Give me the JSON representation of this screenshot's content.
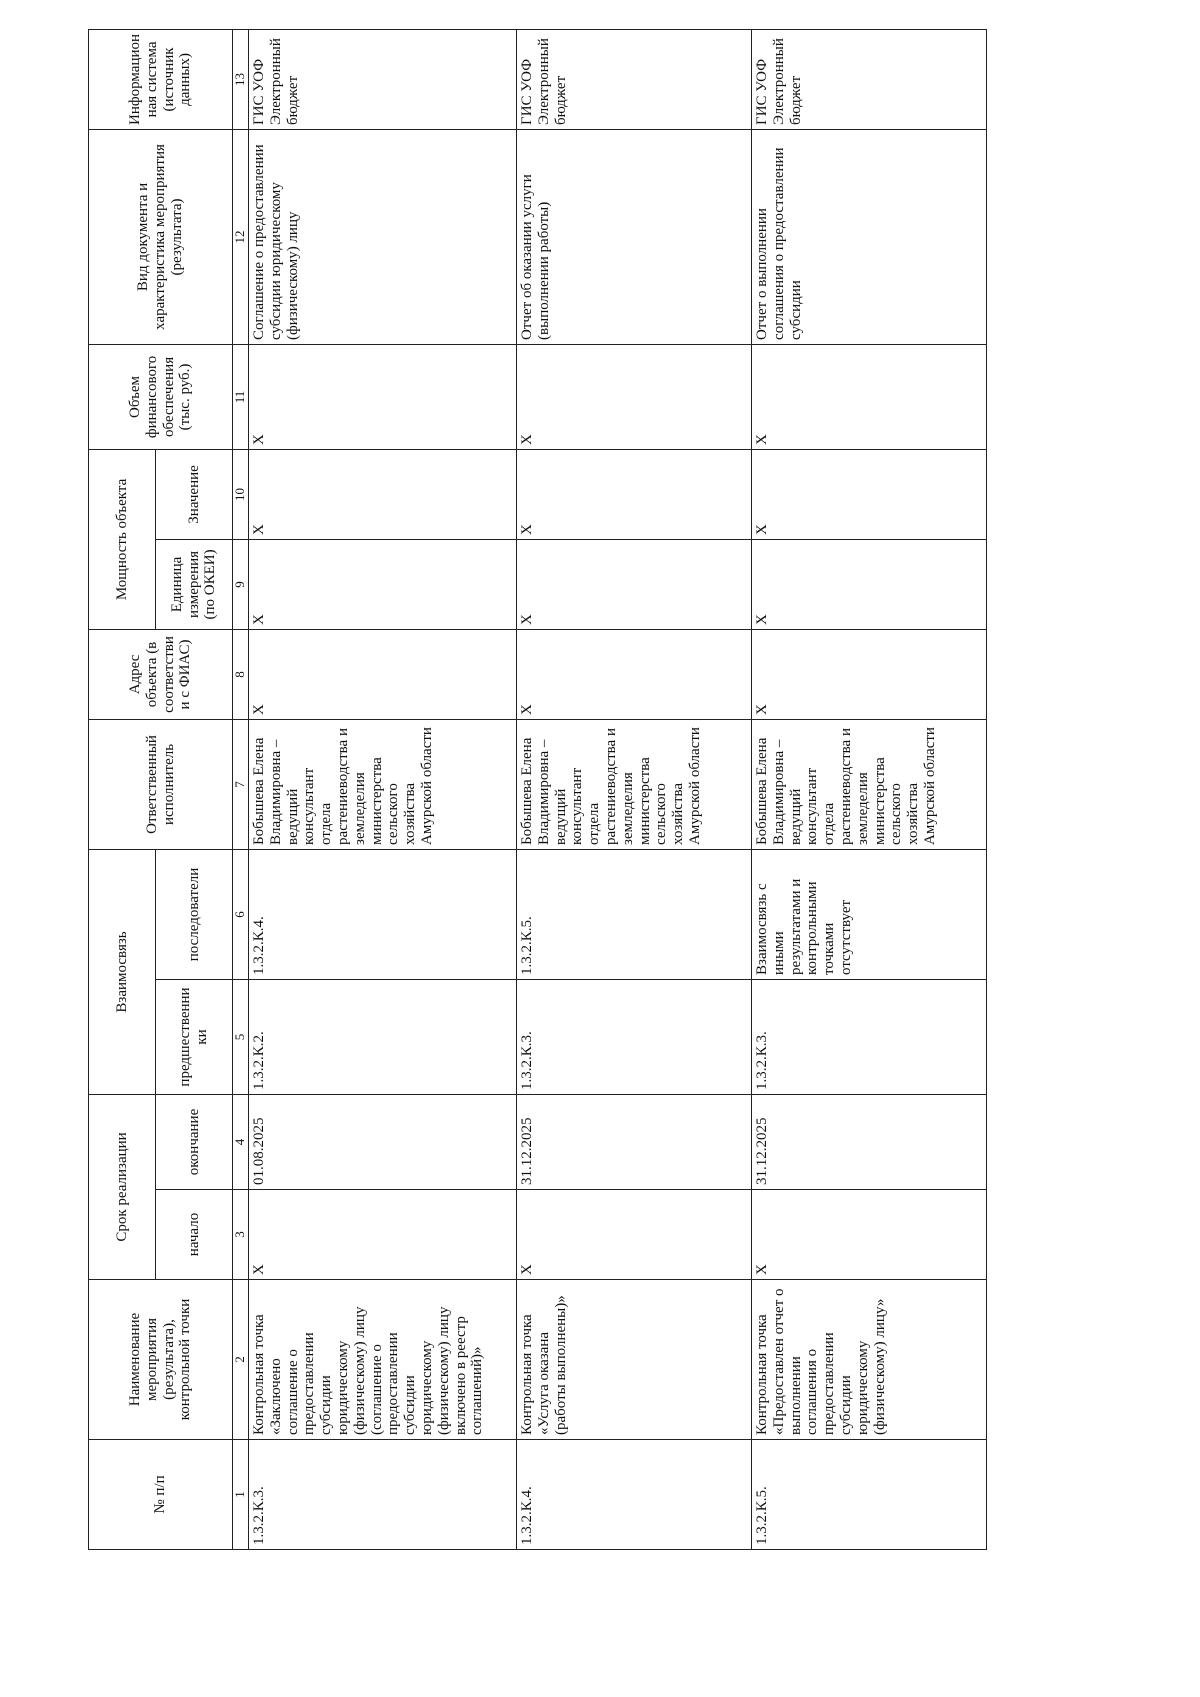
{
  "table": {
    "header_top": [
      {
        "text": "№ п/п",
        "rowspan": 2,
        "colspan": 1
      },
      {
        "text": "Наименование мероприятия (результата), контрольной точки",
        "rowspan": 2,
        "colspan": 1
      },
      {
        "text": "Срок реализации",
        "rowspan": 1,
        "colspan": 2
      },
      {
        "text": "Взаимосвязь",
        "rowspan": 1,
        "colspan": 2
      },
      {
        "text": "Ответственный исполнитель",
        "rowspan": 2,
        "colspan": 1
      },
      {
        "text": "Адрес объекта (в соответствии с ФИАС)",
        "rowspan": 2,
        "colspan": 1
      },
      {
        "text": "Мощность объекта",
        "rowspan": 1,
        "colspan": 2
      },
      {
        "text": "Объем финансового обеспечения (тыс. руб.)",
        "rowspan": 2,
        "colspan": 1
      },
      {
        "text": "Вид документа и характеристика мероприятия (результата)",
        "rowspan": 2,
        "colspan": 1
      },
      {
        "text": "Информационная система (источник данных)",
        "rowspan": 2,
        "colspan": 1
      }
    ],
    "header_sub": [
      "начало",
      "окончание",
      "предшественники",
      "последователи",
      "Единица измерения (по ОКЕИ)",
      "Значение"
    ],
    "numbers": [
      "1",
      "2",
      "3",
      "4",
      "5",
      "6",
      "7",
      "8",
      "9",
      "10",
      "11",
      "12",
      "13"
    ],
    "rows": [
      [
        "1.3.2.К.3.",
        "Контрольная точка «Заключено соглашение о предоставлении субсидии юридическому (физическому) лицу (соглашение о предоставлении субсидии юридическому (физическому) лицу включено в реестр соглашений)»",
        "X",
        "01.08.2025",
        "1.3.2.К.2.",
        "1.3.2.К.4.",
        "Бобышева Елена Владимировна – ведущий консультант отдела растениеводства и земледелия министерства сельского хозяйства Амурской области",
        "X",
        "X",
        "X",
        "X",
        "Соглашение о предоставлении субсидии юридическому (физическому) лицу",
        "ГИС УОФ Электронный бюджет"
      ],
      [
        "1.3.2.К.4.",
        "Контрольная точка «Услуга оказана (работы выполнены)»",
        "X",
        "31.12.2025",
        "1.3.2.К.3.",
        "1.3.2.К.5.",
        "Бобышева Елена Владимировна – ведущий консультант отдела растениеводства и земледелия министерства сельского хозяйства Амурской области",
        "X",
        "X",
        "X",
        "X",
        "Отчет об оказании услуги (выполнении работы)",
        "ГИС УОФ Электронный бюджет"
      ],
      [
        "1.3.2.К.5.",
        "Контрольная точка «Предоставлен отчет о выполнении соглашения о предоставлении субсидии юридическому (физическому) лицу»",
        "X",
        "31.12.2025",
        "1.3.2.К.3.",
        "Взаимосвязь с иными результатами и контрольными точками отсутствует",
        "Бобышева Елена Владимировна – ведущий консультант отдела растениеводства и земледелия министерства сельского хозяйства Амурской области",
        "X",
        "X",
        "X",
        "X",
        "Отчет о выполнении соглашения о предоставлении субсидии",
        "ГИС УОФ Электронный бюджет"
      ]
    ]
  }
}
